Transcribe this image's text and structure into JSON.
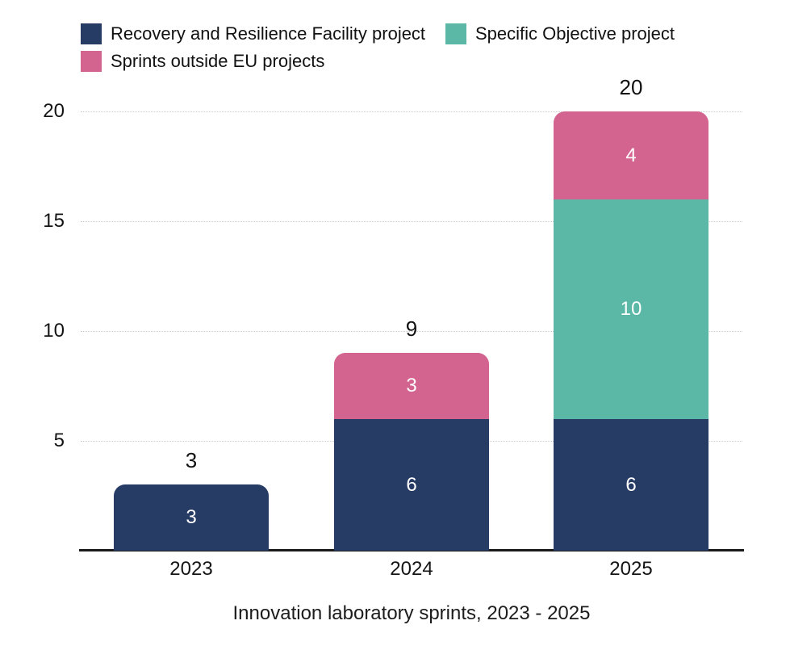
{
  "chart_data": {
    "type": "bar",
    "stacked": true,
    "title": "Innovation laboratory sprints, 2023 - 2025",
    "categories": [
      "2023",
      "2024",
      "2025"
    ],
    "series": [
      {
        "name": "Recovery and Resilience Facility project",
        "color": "#263C64",
        "values": [
          3,
          6,
          6
        ]
      },
      {
        "name": "Specific Objective project",
        "color": "#5BB8A6",
        "values": [
          0,
          0,
          10
        ]
      },
      {
        "name": "Sprints outside EU projects",
        "color": "#D2648F",
        "values": [
          0,
          3,
          4
        ]
      }
    ],
    "totals": [
      3,
      9,
      20
    ],
    "xlabel": "",
    "ylabel": "",
    "ylim": [
      0,
      20
    ],
    "yticks": [
      5,
      10,
      15,
      20
    ],
    "grid": true,
    "legend_position": "top-left"
  },
  "legend": {
    "items": [
      {
        "label": "Recovery and Resilience Facility project",
        "color": "#263C64"
      },
      {
        "label": "Specific Objective project",
        "color": "#5BB8A6"
      },
      {
        "label": "Sprints outside EU projects",
        "color": "#D2648F"
      }
    ]
  },
  "colors": {
    "background": "#ffffff",
    "grid": "#c9c9c9",
    "axis": "#1a1a1a",
    "segment_label": "#ffffff",
    "text": "#111111"
  }
}
